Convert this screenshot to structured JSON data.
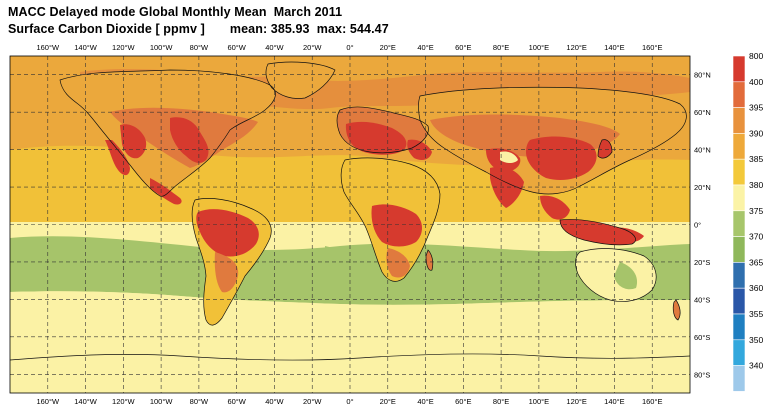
{
  "header": {
    "title_line1": "MACC Delayed mode Global Monthly Mean  March 2011",
    "title_line2": "Surface Carbon Dioxide [ ppmv ]       mean: 385.93  max: 544.47"
  },
  "map": {
    "projection": "equirectangular",
    "lon_ticks": [
      "160°W",
      "140°W",
      "120°W",
      "100°W",
      "80°W",
      "60°W",
      "40°W",
      "20°W",
      "0°",
      "20°E",
      "40°E",
      "60°E",
      "80°E",
      "100°E",
      "120°E",
      "140°E",
      "160°E"
    ],
    "lat_ticks": [
      "80°N",
      "60°N",
      "40°N",
      "20°N",
      "0°",
      "20°S",
      "40°S",
      "60°S",
      "80°S"
    ],
    "grid": "dashed"
  },
  "colorbar": {
    "levels": [
      "800",
      "400",
      "395",
      "390",
      "385",
      "380",
      "375",
      "370",
      "365",
      "360",
      "355",
      "350",
      "340"
    ],
    "colors": [
      "#d63a2e",
      "#e26b3b",
      "#e8923d",
      "#eea93a",
      "#f3c93a",
      "#fbf3a6",
      "#a7c66b",
      "#8fb85b",
      "#2f6fae",
      "#2a57a8",
      "#1f7fc1",
      "#33a8dd",
      "#9ec9ea"
    ]
  },
  "legend_colors": {
    "c400": "#d63a2e",
    "c395": "#e07a3e",
    "c390": "#eba83c",
    "c385": "#f1c138",
    "c380": "#fbf2a5",
    "c375": "#a6c46a"
  }
}
